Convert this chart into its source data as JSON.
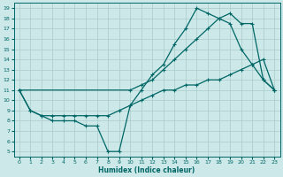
{
  "bg_color": "#cce8e8",
  "line_color": "#006666",
  "grid_color": "#aacccc",
  "xlabel": "Humidex (Indice chaleur)",
  "xlim": [
    -0.5,
    23.5
  ],
  "ylim": [
    4.5,
    19.5
  ],
  "xticks": [
    0,
    1,
    2,
    3,
    4,
    5,
    6,
    7,
    8,
    9,
    10,
    11,
    12,
    13,
    14,
    15,
    16,
    17,
    18,
    19,
    20,
    21,
    22,
    23
  ],
  "yticks": [
    5,
    6,
    7,
    8,
    9,
    10,
    11,
    12,
    13,
    14,
    15,
    16,
    17,
    18,
    19
  ],
  "line1_x": [
    0,
    1,
    2,
    3,
    4,
    5,
    6,
    7,
    8,
    9,
    10,
    11,
    12,
    13,
    14,
    15,
    16,
    17,
    18,
    19,
    20,
    21,
    22,
    23
  ],
  "line1_y": [
    11,
    9,
    8.5,
    8,
    8,
    8,
    7.5,
    7.5,
    5,
    5,
    9.5,
    11,
    12.5,
    13.5,
    15.5,
    17,
    19,
    18.5,
    18,
    17.5,
    15,
    13.5,
    12,
    11
  ],
  "line2_x": [
    0,
    10,
    11,
    12,
    13,
    14,
    15,
    16,
    17,
    18,
    19,
    20,
    21,
    22,
    23
  ],
  "line2_y": [
    11,
    11,
    11.5,
    12,
    13,
    14,
    15,
    16,
    17,
    18,
    18.5,
    17.5,
    17.5,
    12,
    11
  ],
  "line3_x": [
    0,
    1,
    2,
    3,
    4,
    5,
    6,
    7,
    8,
    9,
    10,
    11,
    12,
    13,
    14,
    15,
    16,
    17,
    18,
    19,
    20,
    21,
    22,
    23
  ],
  "line3_y": [
    11,
    9,
    8.5,
    8.5,
    8.5,
    8.5,
    8.5,
    8.5,
    8.5,
    9,
    9.5,
    10,
    10.5,
    11,
    11,
    11.5,
    11.5,
    12,
    12,
    12.5,
    13,
    13.5,
    14,
    11
  ],
  "lw": 0.9,
  "ms": 3.5
}
